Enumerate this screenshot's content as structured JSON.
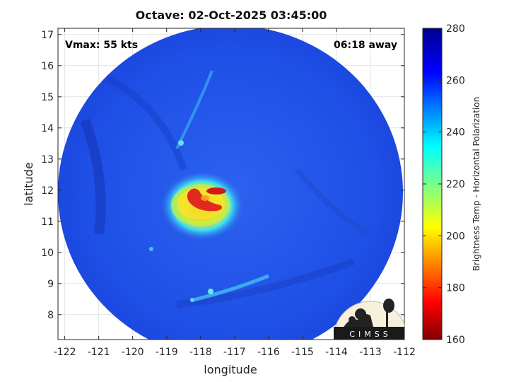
{
  "title": "Octave: 02-Oct-2025 03:45:00",
  "annotations": {
    "vmax": "Vmax: 55 kts",
    "time_away": "06:18 away"
  },
  "axes": {
    "xlabel": "longitude",
    "ylabel": "latitude",
    "xlim": [
      -122.2,
      -112
    ],
    "ylim": [
      7.2,
      17.2
    ],
    "xticks": [
      "-122",
      "-121",
      "-120",
      "-119",
      "-118",
      "-117",
      "-116",
      "-115",
      "-114",
      "-113",
      "-112"
    ],
    "yticks": [
      "8",
      "9",
      "10",
      "11",
      "12",
      "13",
      "14",
      "15",
      "16",
      "17"
    ],
    "grid": true
  },
  "colorbar": {
    "label": "Brightness Temp - Horizontal Polarization",
    "range": [
      160,
      280
    ],
    "ticks": [
      "280",
      "260",
      "240",
      "220",
      "200",
      "180",
      "160"
    ],
    "colormap": "jet"
  },
  "logo": {
    "text": "CIMSS"
  },
  "colors": {
    "background_field": "#1e4fe6",
    "eye_core": "#e8202a",
    "eye_ring": "#f8e020",
    "eye_outer": "#38e0f0"
  },
  "storm_center": {
    "lon": -117.9,
    "lat": 11.5
  },
  "swath": {
    "center_lon": -117.1,
    "center_lat": 11.6
  }
}
